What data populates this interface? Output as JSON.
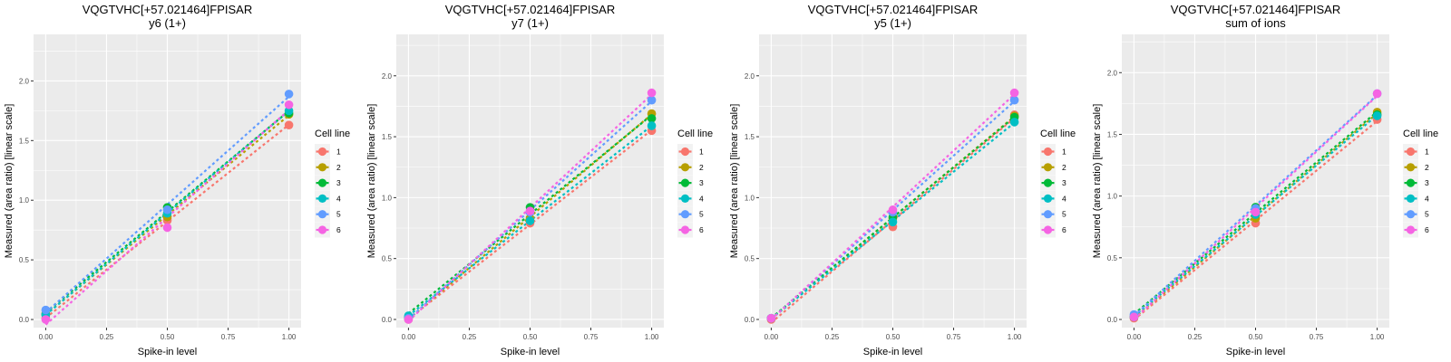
{
  "chart_data": [
    {
      "type": "scatter",
      "title": "VQGTVHC[+57.021464]FPISAR",
      "subtitle": "y6 (1+)",
      "xlabel": "Spike-in level",
      "ylabel": "Measured (area ratio) [linear scale]",
      "xlim": [
        -0.05,
        1.05
      ],
      "ylim": [
        -0.068,
        2.39
      ],
      "xticks": [
        0,
        0.25,
        0.5,
        0.75,
        1
      ],
      "xtick_labels": [
        "0.00",
        "0.25",
        "0.50",
        "0.75",
        "1.00"
      ],
      "yticks": [
        0,
        0.5,
        1,
        1.5,
        2
      ],
      "ytick_labels": [
        "0.0",
        "0.5",
        "1.0",
        "1.5",
        "2.0"
      ],
      "grid": true,
      "legend_title": "Cell line",
      "legend_position": "right",
      "x": [
        0,
        0.5,
        1
      ],
      "series": [
        {
          "name": "1",
          "color": "#F8766D",
          "values": [
            0.01,
            0.83,
            1.63
          ]
        },
        {
          "name": "2",
          "color": "#B79F00",
          "values": [
            0.05,
            0.86,
            1.72
          ]
        },
        {
          "name": "3",
          "color": "#00BA38",
          "values": [
            0.04,
            0.94,
            1.73
          ]
        },
        {
          "name": "4",
          "color": "#00BFC4",
          "values": [
            0.04,
            0.89,
            1.75
          ]
        },
        {
          "name": "5",
          "color": "#619CFF",
          "values": [
            0.08,
            0.92,
            1.89
          ]
        },
        {
          "name": "6",
          "color": "#F564E3",
          "values": [
            0.0,
            0.77,
            1.8
          ]
        }
      ]
    },
    {
      "type": "scatter",
      "title": "VQGTVHC[+57.021464]FPISAR",
      "subtitle": "y7 (1+)",
      "xlabel": "Spike-in level",
      "ylabel": "Measured (area ratio) [linear scale]",
      "xlim": [
        -0.05,
        1.05
      ],
      "ylim": [
        -0.067,
        2.34
      ],
      "xticks": [
        0,
        0.25,
        0.5,
        0.75,
        1
      ],
      "xtick_labels": [
        "0.00",
        "0.25",
        "0.50",
        "0.75",
        "1.00"
      ],
      "yticks": [
        0,
        0.5,
        1,
        1.5,
        2
      ],
      "ytick_labels": [
        "0.0",
        "0.5",
        "1.0",
        "1.5",
        "2.0"
      ],
      "grid": true,
      "legend_title": "Cell line",
      "legend_position": "right",
      "x": [
        0,
        0.5,
        1
      ],
      "series": [
        {
          "name": "1",
          "color": "#F8766D",
          "values": [
            0.0,
            0.79,
            1.55
          ]
        },
        {
          "name": "2",
          "color": "#B79F00",
          "values": [
            0.01,
            0.83,
            1.69
          ]
        },
        {
          "name": "3",
          "color": "#00BA38",
          "values": [
            0.02,
            0.92,
            1.65
          ]
        },
        {
          "name": "4",
          "color": "#00BFC4",
          "values": [
            0.03,
            0.81,
            1.59
          ]
        },
        {
          "name": "5",
          "color": "#619CFF",
          "values": [
            0.01,
            0.88,
            1.8
          ]
        },
        {
          "name": "6",
          "color": "#F564E3",
          "values": [
            0.0,
            0.89,
            1.86
          ]
        }
      ]
    },
    {
      "type": "scatter",
      "title": "VQGTVHC[+57.021464]FPISAR",
      "subtitle": "y5 (1+)",
      "xlabel": "Spike-in level",
      "ylabel": "Measured (area ratio) [linear scale]",
      "xlim": [
        -0.05,
        1.05
      ],
      "ylim": [
        -0.067,
        2.34
      ],
      "xticks": [
        0,
        0.25,
        0.5,
        0.75,
        1
      ],
      "xtick_labels": [
        "0.00",
        "0.25",
        "0.50",
        "0.75",
        "1.00"
      ],
      "yticks": [
        0,
        0.5,
        1,
        1.5,
        2
      ],
      "ytick_labels": [
        "0.0",
        "0.5",
        "1.0",
        "1.5",
        "2.0"
      ],
      "grid": true,
      "legend_title": "Cell line",
      "legend_position": "right",
      "x": [
        0,
        0.5,
        1
      ],
      "series": [
        {
          "name": "1",
          "color": "#F8766D",
          "values": [
            0.0,
            0.76,
            1.68
          ]
        },
        {
          "name": "2",
          "color": "#B79F00",
          "values": [
            0.01,
            0.83,
            1.67
          ]
        },
        {
          "name": "3",
          "color": "#00BA38",
          "values": [
            0.01,
            0.84,
            1.66
          ]
        },
        {
          "name": "4",
          "color": "#00BFC4",
          "values": [
            0.01,
            0.8,
            1.62
          ]
        },
        {
          "name": "5",
          "color": "#619CFF",
          "values": [
            0.01,
            0.88,
            1.8
          ]
        },
        {
          "name": "6",
          "color": "#F564E3",
          "values": [
            0.01,
            0.9,
            1.86
          ]
        }
      ]
    },
    {
      "type": "scatter",
      "title": "VQGTVHC[+57.021464]FPISAR",
      "subtitle": "sum of ions",
      "xlabel": "Spike-in level",
      "ylabel": "Measured (area ratio) [linear scale]",
      "xlim": [
        -0.05,
        1.05
      ],
      "ylim": [
        -0.066,
        2.31
      ],
      "xticks": [
        0,
        0.25,
        0.5,
        0.75,
        1
      ],
      "xtick_labels": [
        "0.00",
        "0.25",
        "0.50",
        "0.75",
        "1.00"
      ],
      "yticks": [
        0,
        0.5,
        1,
        1.5,
        2
      ],
      "ytick_labels": [
        "0.0",
        "0.5",
        "1.0",
        "1.5",
        "2.0"
      ],
      "grid": true,
      "legend_title": "Cell line",
      "legend_position": "right",
      "x": [
        0,
        0.5,
        1
      ],
      "series": [
        {
          "name": "1",
          "color": "#F8766D",
          "values": [
            0.01,
            0.78,
            1.62
          ]
        },
        {
          "name": "2",
          "color": "#B79F00",
          "values": [
            0.02,
            0.82,
            1.68
          ]
        },
        {
          "name": "3",
          "color": "#00BA38",
          "values": [
            0.02,
            0.91,
            1.66
          ]
        },
        {
          "name": "4",
          "color": "#00BFC4",
          "values": [
            0.02,
            0.85,
            1.65
          ]
        },
        {
          "name": "5",
          "color": "#619CFF",
          "values": [
            0.04,
            0.9,
            1.83
          ]
        },
        {
          "name": "6",
          "color": "#F564E3",
          "values": [
            0.02,
            0.87,
            1.83
          ]
        }
      ]
    }
  ]
}
